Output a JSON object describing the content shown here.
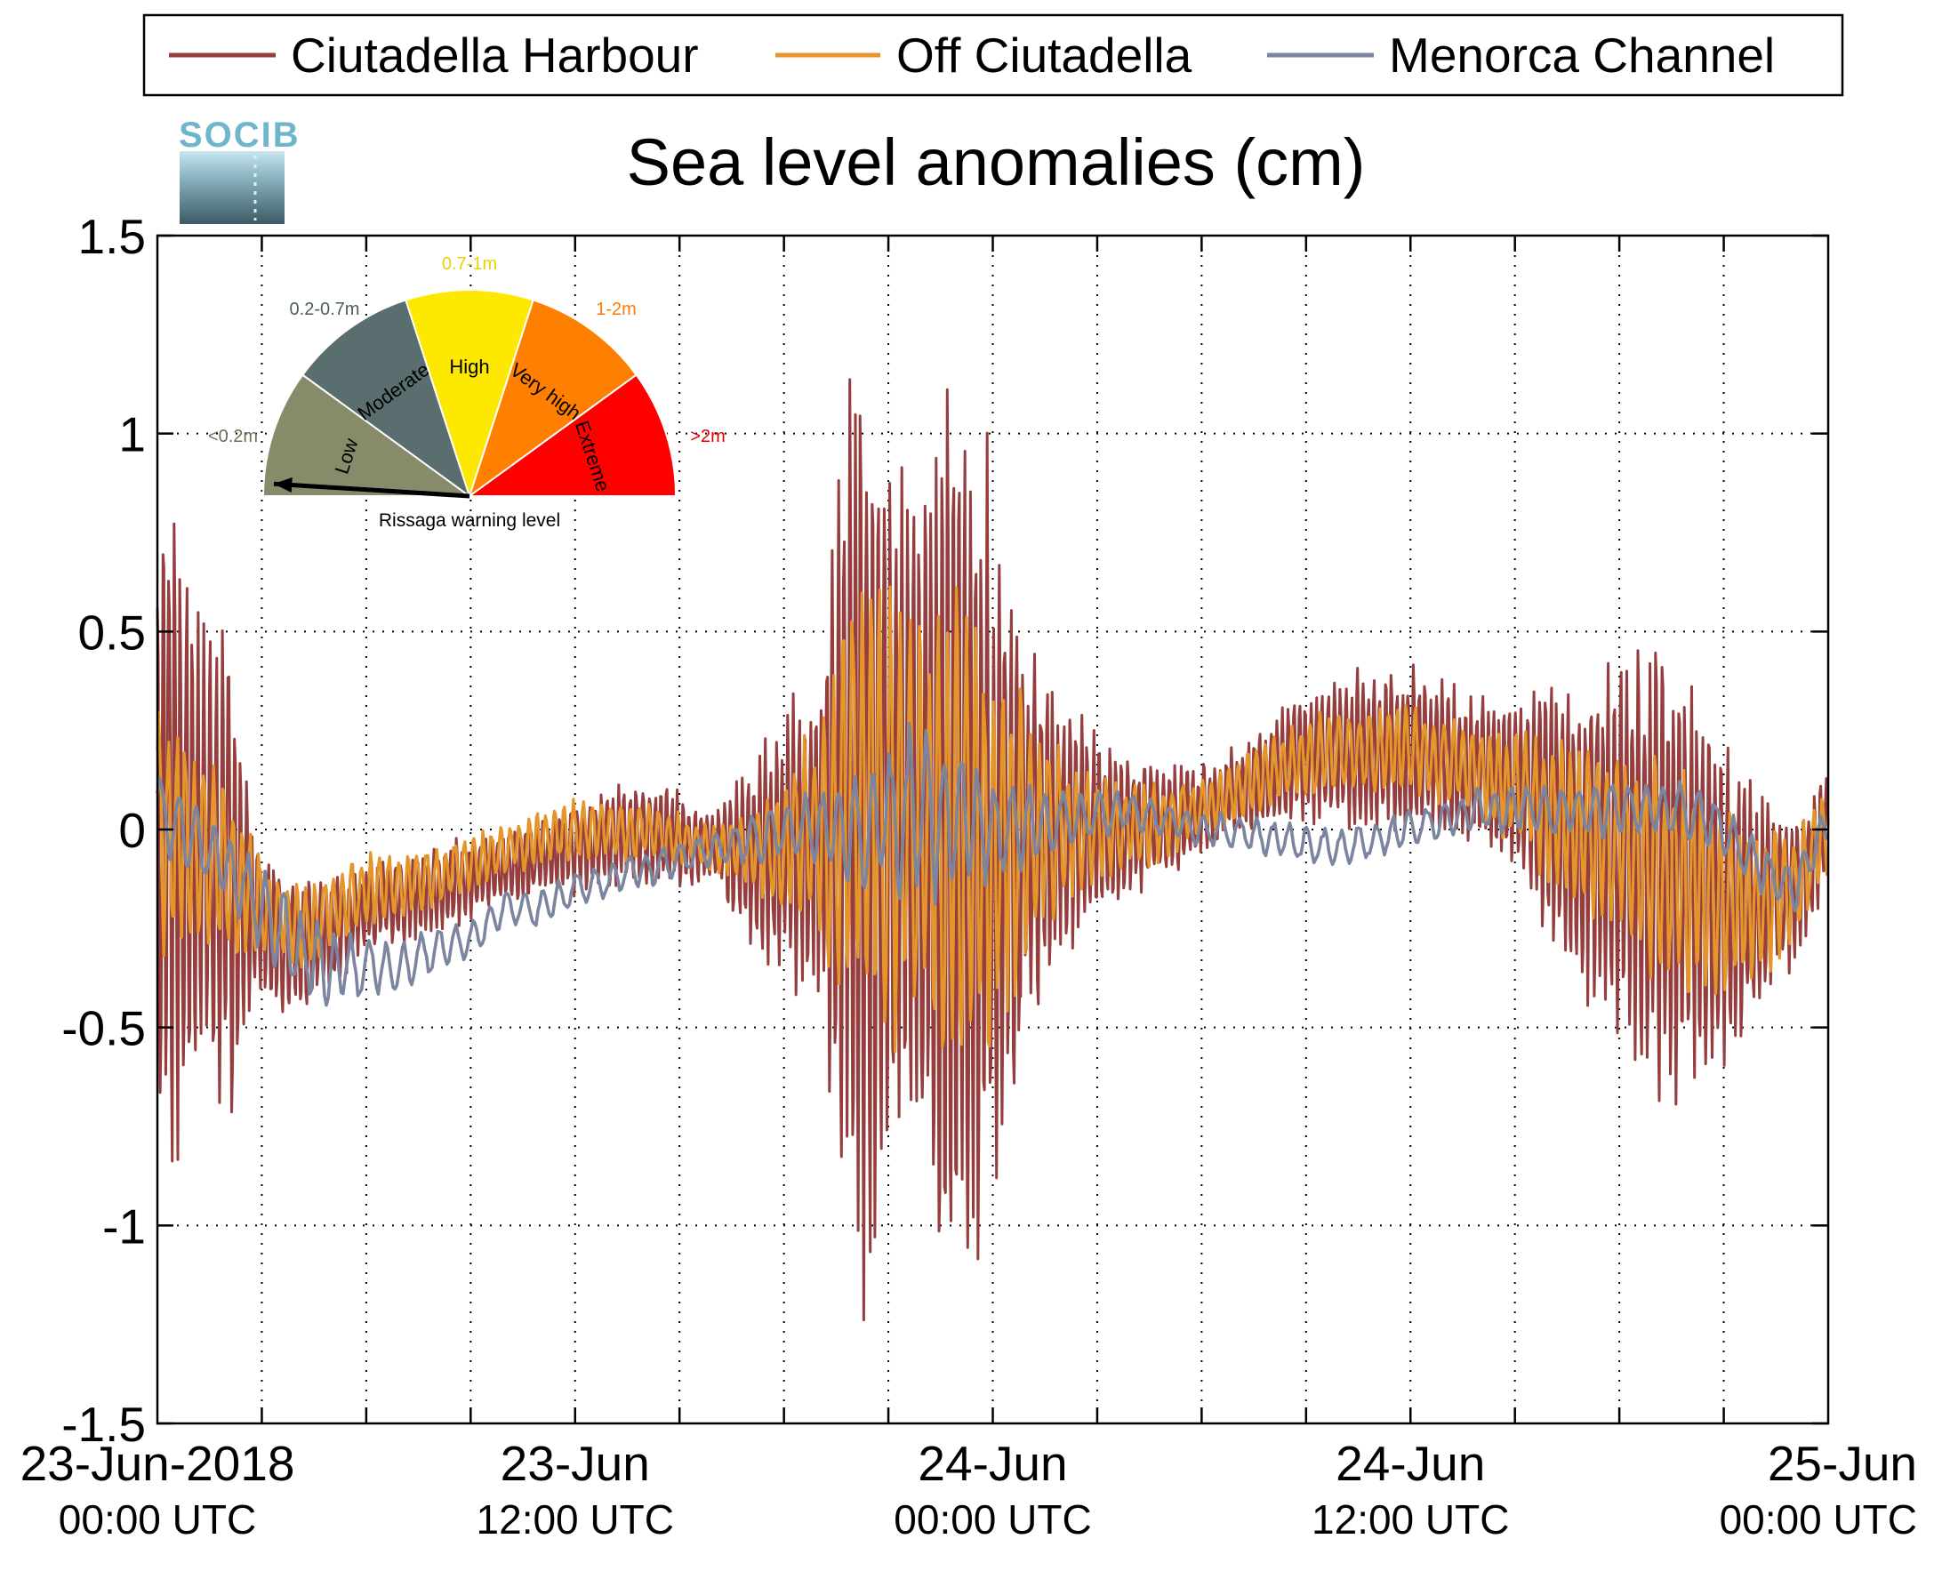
{
  "chart_data": {
    "type": "line",
    "title": "Sea level anomalies (cm)",
    "xlabel": "",
    "ylabel": "",
    "ylim": [
      -1.5,
      1.5
    ],
    "yticks": [
      -1.5,
      -1,
      -0.5,
      0,
      0.5,
      1,
      1.5
    ],
    "ytick_labels": [
      "-1.5",
      "-1",
      "-0.5",
      "0",
      "0.5",
      "1",
      "1.5"
    ],
    "xlim_hours": [
      0,
      48
    ],
    "xticks": [
      {
        "hours": 0,
        "date": "23-Jun-2018",
        "time": "00:00 UTC"
      },
      {
        "hours": 12,
        "date": "23-Jun",
        "time": "12:00 UTC"
      },
      {
        "hours": 24,
        "date": "24-Jun",
        "time": "00:00 UTC"
      },
      {
        "hours": 36,
        "date": "24-Jun",
        "time": "12:00 UTC"
      },
      {
        "hours": 48,
        "date": "25-Jun",
        "time": "00:00 UTC"
      }
    ],
    "minor_grid_every_hours": 3,
    "grid": true,
    "legend_position": "top",
    "series": [
      {
        "name": "Ciutadella Harbour",
        "color": "#963d3d",
        "envelope": [
          [
            0,
            0.9
          ],
          [
            0.5,
            0.95
          ],
          [
            1,
            0.75
          ],
          [
            1.5,
            0.6
          ],
          [
            2,
            0.7
          ],
          [
            2.5,
            0.35
          ],
          [
            3,
            0.2
          ],
          [
            3.5,
            0.2
          ],
          [
            4,
            0.2
          ],
          [
            5,
            0.15
          ],
          [
            6,
            0.12
          ],
          [
            8,
            0.12
          ],
          [
            10,
            0.1
          ],
          [
            11,
            0.1
          ],
          [
            12,
            0.12
          ],
          [
            14,
            0.15
          ],
          [
            16,
            0.1
          ],
          [
            17,
            0.25
          ],
          [
            18,
            0.35
          ],
          [
            19,
            0.5
          ],
          [
            19.5,
            0.8
          ],
          [
            20,
            1.4
          ],
          [
            20.5,
            1.3
          ],
          [
            21,
            1.0
          ],
          [
            21.5,
            0.9
          ],
          [
            22,
            1.0
          ],
          [
            22.5,
            1.2
          ],
          [
            23,
            1.3
          ],
          [
            23.5,
            1.2
          ],
          [
            24,
            1.0
          ],
          [
            24.5,
            0.8
          ],
          [
            25,
            0.5
          ],
          [
            26,
            0.35
          ],
          [
            27,
            0.25
          ],
          [
            28,
            0.2
          ],
          [
            29,
            0.15
          ],
          [
            30,
            0.12
          ],
          [
            31,
            0.12
          ],
          [
            32,
            0.15
          ],
          [
            33,
            0.18
          ],
          [
            34,
            0.2
          ],
          [
            35,
            0.22
          ],
          [
            36,
            0.25
          ],
          [
            37,
            0.2
          ],
          [
            38,
            0.2
          ],
          [
            39,
            0.25
          ],
          [
            40,
            0.35
          ],
          [
            41,
            0.45
          ],
          [
            42,
            0.5
          ],
          [
            43,
            0.6
          ],
          [
            44,
            0.55
          ],
          [
            45,
            0.45
          ],
          [
            46,
            0.3
          ],
          [
            47,
            0.2
          ],
          [
            48,
            0.15
          ]
        ],
        "baseline": [
          [
            0,
            0
          ],
          [
            2,
            -0.1
          ],
          [
            3,
            -0.25
          ],
          [
            4,
            -0.3
          ],
          [
            5,
            -0.25
          ],
          [
            6,
            -0.2
          ],
          [
            8,
            -0.15
          ],
          [
            10,
            -0.1
          ],
          [
            12,
            -0.05
          ],
          [
            14,
            0
          ],
          [
            16,
            -0.05
          ],
          [
            18,
            -0.05
          ],
          [
            20,
            0.05
          ],
          [
            22,
            0
          ],
          [
            24,
            -0.05
          ],
          [
            26,
            0
          ],
          [
            28,
            0
          ],
          [
            30,
            0.05
          ],
          [
            32,
            0.15
          ],
          [
            34,
            0.2
          ],
          [
            36,
            0.2
          ],
          [
            38,
            0.15
          ],
          [
            40,
            0.05
          ],
          [
            42,
            -0.05
          ],
          [
            44,
            -0.15
          ],
          [
            46,
            -0.2
          ],
          [
            47,
            -0.15
          ],
          [
            48,
            0
          ]
        ],
        "period_minutes": 10
      },
      {
        "name": "Off Ciutadella",
        "color": "#e5962a",
        "envelope": [
          [
            0,
            0.35
          ],
          [
            1,
            0.3
          ],
          [
            2,
            0.25
          ],
          [
            3,
            0.15
          ],
          [
            4,
            0.12
          ],
          [
            6,
            0.1
          ],
          [
            8,
            0.08
          ],
          [
            10,
            0.07
          ],
          [
            12,
            0.08
          ],
          [
            14,
            0.08
          ],
          [
            16,
            0.06
          ],
          [
            17,
            0.1
          ],
          [
            18,
            0.2
          ],
          [
            19,
            0.3
          ],
          [
            19.5,
            0.5
          ],
          [
            20,
            0.7
          ],
          [
            21,
            0.6
          ],
          [
            22,
            0.55
          ],
          [
            23,
            0.7
          ],
          [
            24,
            0.55
          ],
          [
            25,
            0.35
          ],
          [
            26,
            0.2
          ],
          [
            27,
            0.15
          ],
          [
            28,
            0.12
          ],
          [
            30,
            0.08
          ],
          [
            32,
            0.1
          ],
          [
            34,
            0.12
          ],
          [
            36,
            0.12
          ],
          [
            38,
            0.12
          ],
          [
            40,
            0.2
          ],
          [
            42,
            0.25
          ],
          [
            43,
            0.3
          ],
          [
            44,
            0.3
          ],
          [
            45,
            0.25
          ],
          [
            46,
            0.2
          ],
          [
            48,
            0.12
          ]
        ],
        "baseline": [
          [
            0,
            0
          ],
          [
            2,
            -0.1
          ],
          [
            3,
            -0.2
          ],
          [
            4,
            -0.25
          ],
          [
            5,
            -0.2
          ],
          [
            6,
            -0.15
          ],
          [
            8,
            -0.12
          ],
          [
            10,
            -0.05
          ],
          [
            12,
            0
          ],
          [
            14,
            0
          ],
          [
            16,
            -0.05
          ],
          [
            18,
            -0.05
          ],
          [
            20,
            0.05
          ],
          [
            22,
            0
          ],
          [
            24,
            -0.05
          ],
          [
            26,
            0
          ],
          [
            28,
            0
          ],
          [
            30,
            0.05
          ],
          [
            32,
            0.15
          ],
          [
            34,
            0.2
          ],
          [
            36,
            0.2
          ],
          [
            38,
            0.15
          ],
          [
            40,
            0.05
          ],
          [
            42,
            -0.05
          ],
          [
            44,
            -0.15
          ],
          [
            46,
            -0.2
          ],
          [
            47,
            -0.15
          ],
          [
            48,
            0
          ]
        ],
        "period_minutes": 16
      },
      {
        "name": "Menorca Channel",
        "color": "#7c85a0",
        "envelope": [
          [
            0,
            0.1
          ],
          [
            2,
            0.1
          ],
          [
            4,
            0.12
          ],
          [
            6,
            0.08
          ],
          [
            8,
            0.06
          ],
          [
            10,
            0.05
          ],
          [
            12,
            0.05
          ],
          [
            16,
            0.05
          ],
          [
            18,
            0.08
          ],
          [
            20,
            0.15
          ],
          [
            22,
            0.25
          ],
          [
            24,
            0.15
          ],
          [
            26,
            0.08
          ],
          [
            28,
            0.05
          ],
          [
            32,
            0.05
          ],
          [
            36,
            0.05
          ],
          [
            40,
            0.07
          ],
          [
            44,
            0.08
          ],
          [
            48,
            0.06
          ]
        ],
        "baseline": [
          [
            0,
            0.05
          ],
          [
            2,
            -0.1
          ],
          [
            3,
            -0.2
          ],
          [
            4,
            -0.3
          ],
          [
            5,
            -0.35
          ],
          [
            6,
            -0.35
          ],
          [
            7,
            -0.35
          ],
          [
            8,
            -0.3
          ],
          [
            9,
            -0.28
          ],
          [
            10,
            -0.2
          ],
          [
            11,
            -0.2
          ],
          [
            12,
            -0.15
          ],
          [
            14,
            -0.1
          ],
          [
            16,
            -0.05
          ],
          [
            18,
            0
          ],
          [
            20,
            0
          ],
          [
            22,
            0.05
          ],
          [
            24,
            0
          ],
          [
            26,
            0.02
          ],
          [
            28,
            0.05
          ],
          [
            30,
            0
          ],
          [
            32,
            -0.02
          ],
          [
            34,
            -0.05
          ],
          [
            36,
            0
          ],
          [
            38,
            0.05
          ],
          [
            40,
            0.05
          ],
          [
            42,
            0.05
          ],
          [
            44,
            0.05
          ],
          [
            45,
            0
          ],
          [
            46,
            -0.1
          ],
          [
            47,
            -0.15
          ],
          [
            48,
            0.02
          ]
        ],
        "period_minutes": 30
      }
    ]
  },
  "legend": {
    "items": [
      {
        "label": "Ciutadella Harbour",
        "color": "#963d3d"
      },
      {
        "label": "Off Ciutadella",
        "color": "#e5962a"
      },
      {
        "label": "Menorca Channel",
        "color": "#7c85a0"
      }
    ]
  },
  "logo": {
    "text": "SOCIB"
  },
  "gauge": {
    "caption": "Rissaga warning level",
    "current_level": "Low",
    "segments": [
      {
        "label": "Low",
        "range": "<0.2m",
        "color": "#878b6a",
        "range_color": "#6e7055"
      },
      {
        "label": "Moderate",
        "range": "0.2-0.7m",
        "color": "#5a6e6f",
        "range_color": "#4a5d5f"
      },
      {
        "label": "High",
        "range": "0.7-1m",
        "color": "#fde900",
        "range_color": "#e8d400"
      },
      {
        "label": "Very high",
        "range": "1-2m",
        "color": "#ff8000",
        "range_color": "#ff7a00"
      },
      {
        "label": "Extreme",
        "range": ">2m",
        "color": "#ff0000",
        "range_color": "#e00000"
      }
    ]
  }
}
